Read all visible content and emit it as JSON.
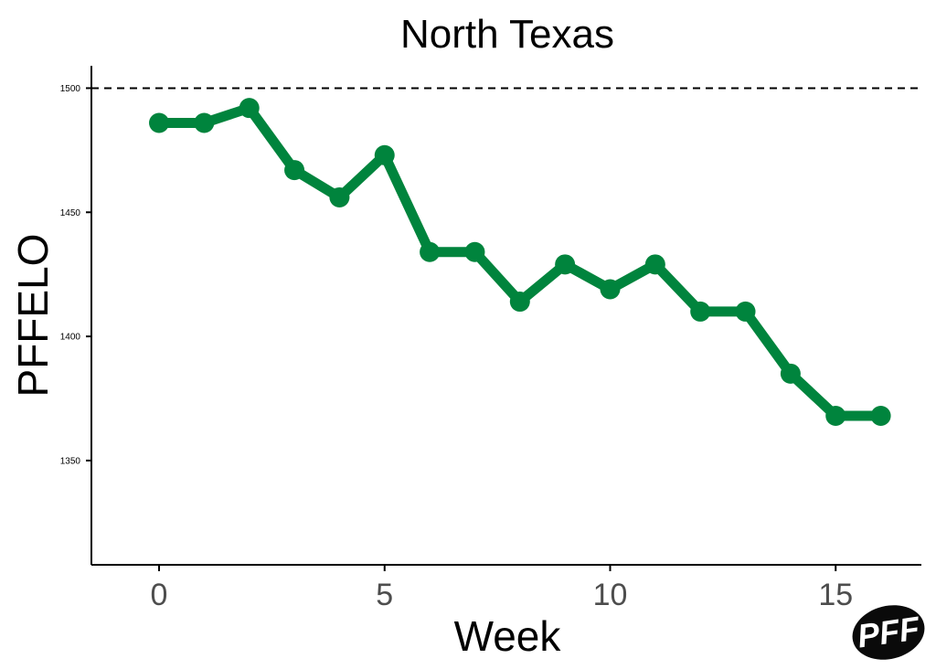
{
  "chart_data": {
    "type": "line",
    "title": "North Texas",
    "xlabel": "Week",
    "ylabel": "PFFELO",
    "x": [
      0,
      1,
      2,
      3,
      4,
      5,
      6,
      7,
      8,
      9,
      10,
      11,
      12,
      13,
      14,
      15,
      16
    ],
    "series": [
      {
        "values": [
          1486,
          1486,
          1492,
          1467,
          1456,
          1473,
          1434,
          1434,
          1414,
          1429,
          1419,
          1429,
          1410,
          1410,
          1385,
          1368,
          1368
        ]
      }
    ],
    "reference_line": {
      "y": 1500,
      "style": "dashed"
    },
    "xlim": [
      -1.5,
      16.9
    ],
    "ylim": [
      1308,
      1509
    ],
    "x_ticks": [
      "0",
      "5",
      "10",
      "15"
    ],
    "y_ticks": [
      "1350",
      "1400",
      "1450",
      "1500"
    ],
    "grid": false,
    "line_color": "#00843d",
    "logo_text": "PFF"
  }
}
